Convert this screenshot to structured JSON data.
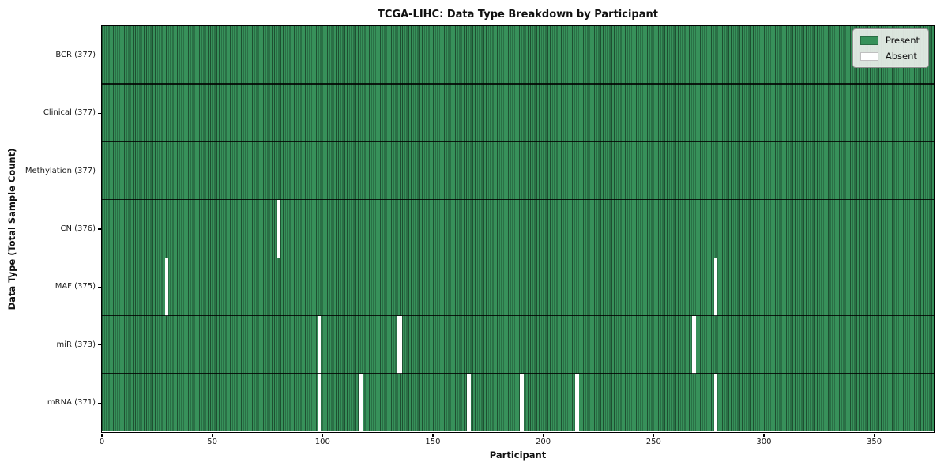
{
  "chart_data": {
    "type": "heatmap",
    "title": "TCGA-LIHC: Data Type Breakdown by Participant",
    "xlabel": "Participant",
    "ylabel": "Data Type (Total Sample Count)",
    "x_ticks": [
      0,
      50,
      100,
      150,
      200,
      250,
      300,
      350
    ],
    "x_range": [
      0,
      377
    ],
    "n_participants": 377,
    "grid": false,
    "legend_position": "upper right",
    "colors": {
      "present": "#37915a",
      "absent": "#ffffff",
      "cell_border": "rgba(0,0,0,0.45)",
      "row_separator": "#000000",
      "plot_border": "#000000"
    },
    "rows": [
      {
        "data_type": "BCR",
        "label": "BCR (377)",
        "total_samples": 377,
        "absent_participants": []
      },
      {
        "data_type": "Clinical",
        "label": "Clinical (377)",
        "total_samples": 377,
        "absent_participants": []
      },
      {
        "data_type": "Methylation",
        "label": "Methylation (377)",
        "total_samples": 377,
        "absent_participants": []
      },
      {
        "data_type": "CN",
        "label": "CN (376)",
        "total_samples": 376,
        "absent_participants": [
          80
        ]
      },
      {
        "data_type": "MAF",
        "label": "MAF (375)",
        "total_samples": 375,
        "absent_participants": [
          29,
          278
        ]
      },
      {
        "data_type": "miR",
        "label": "miR (373)",
        "total_samples": 373,
        "absent_participants": [
          98,
          134,
          135,
          268
        ]
      },
      {
        "data_type": "mRNA",
        "label": "mRNA (371)",
        "total_samples": 371,
        "absent_participants": [
          98,
          117,
          166,
          190,
          215,
          278
        ]
      }
    ],
    "legend": [
      {
        "label": "Present",
        "color": "#37915a"
      },
      {
        "label": "Absent",
        "color": "#ffffff"
      }
    ]
  }
}
